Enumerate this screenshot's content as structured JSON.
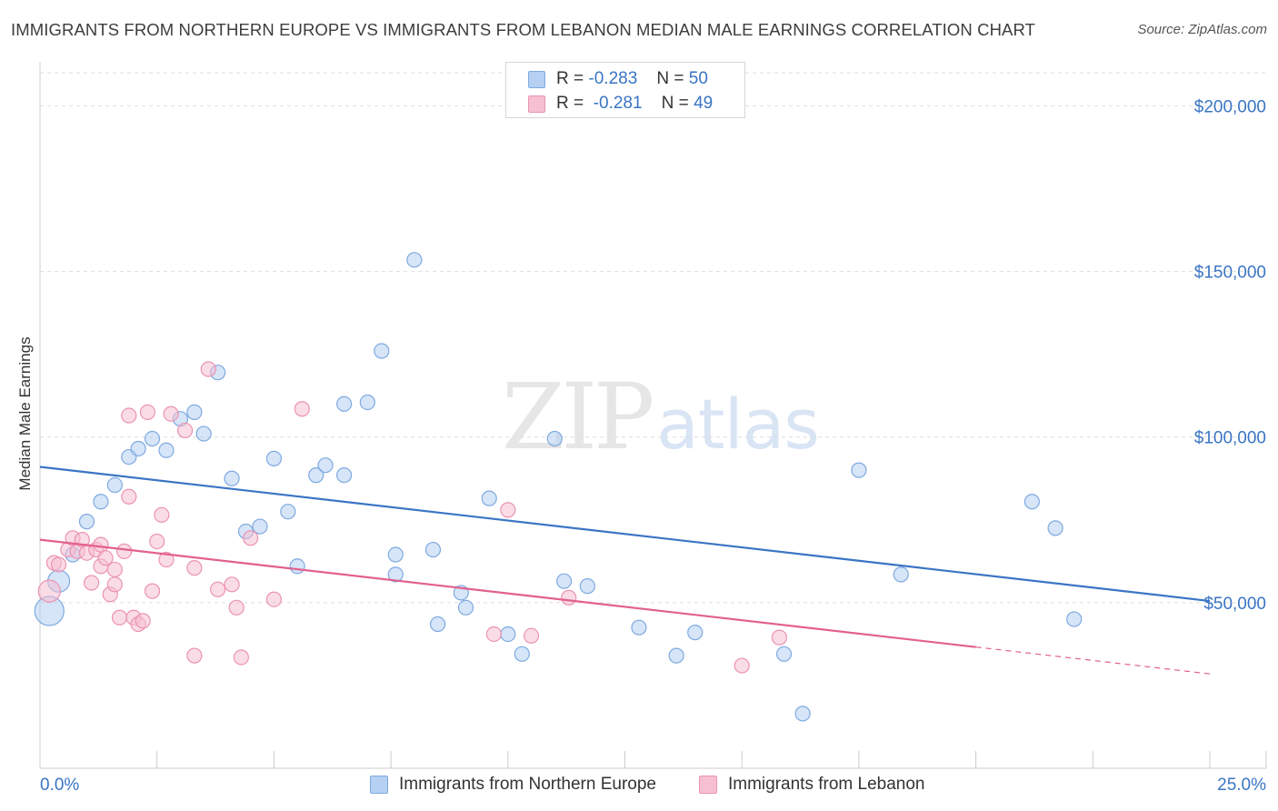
{
  "title": "IMMIGRANTS FROM NORTHERN EUROPE VS IMMIGRANTS FROM LEBANON MEDIAN MALE EARNINGS CORRELATION CHART",
  "source": "Source: ZipAtlas.com",
  "watermark": {
    "zip": "ZIP",
    "atlas": "atlas"
  },
  "colors": {
    "blue": "#3a75c4",
    "blue_fill": "#b5d0f2",
    "blue_stroke": "#7eaae0",
    "pink": "#e2608f",
    "pink_fill": "#f6c0d2",
    "pink_stroke": "#eb93b3",
    "grid": "#dedede",
    "axis": "#cccccc"
  },
  "legend": {
    "rows": [
      {
        "r_label": "R =",
        "r_value": "-0.283",
        "n_label": "N =",
        "n_value": "50"
      },
      {
        "r_label": "R =",
        "r_value": "-0.281",
        "n_label": "N =",
        "n_value": "49"
      }
    ]
  },
  "chart_data": {
    "type": "scatter",
    "title": "IMMIGRANTS FROM NORTHERN EUROPE VS IMMIGRANTS FROM LEBANON MEDIAN MALE EARNINGS CORRELATION CHART",
    "xlabel": "",
    "ylabel": "Median Male Earnings",
    "xlim": [
      0,
      25
    ],
    "ylim": [
      0,
      210000
    ],
    "x_tick_labels": {
      "min": "0.0%",
      "max": "25.0%"
    },
    "y_ticks": [
      {
        "value": 50000,
        "label": "$50,000"
      },
      {
        "value": 100000,
        "label": "$100,000"
      },
      {
        "value": 150000,
        "label": "$150,000"
      },
      {
        "value": 200000,
        "label": "$200,000"
      }
    ],
    "series": [
      {
        "name": "Immigrants from Northern Europe",
        "color": "blue",
        "trend": {
          "x0": 0,
          "y0": 91000,
          "x1": 25,
          "y1": 50500,
          "solid_until": 25
        },
        "points": [
          [
            0.2,
            47500,
            3
          ],
          [
            0.4,
            56500,
            2
          ],
          [
            0.7,
            64500,
            1
          ],
          [
            1.0,
            74500,
            1
          ],
          [
            1.3,
            80500,
            1
          ],
          [
            1.6,
            85500,
            1
          ],
          [
            1.9,
            94000,
            1
          ],
          [
            2.1,
            96500,
            1
          ],
          [
            2.4,
            99500,
            1
          ],
          [
            2.7,
            96000,
            1
          ],
          [
            3.0,
            105500,
            1
          ],
          [
            3.3,
            107500,
            1
          ],
          [
            3.5,
            101000,
            1
          ],
          [
            3.8,
            119500,
            1
          ],
          [
            4.1,
            87500,
            1
          ],
          [
            4.4,
            71500,
            1
          ],
          [
            4.7,
            73000,
            1
          ],
          [
            5.0,
            93500,
            1
          ],
          [
            5.3,
            77500,
            1
          ],
          [
            5.5,
            61000,
            1
          ],
          [
            5.9,
            88500,
            1
          ],
          [
            6.1,
            91500,
            1
          ],
          [
            6.5,
            88500,
            1
          ],
          [
            6.5,
            110000,
            1
          ],
          [
            7.0,
            110500,
            1
          ],
          [
            7.3,
            126000,
            1
          ],
          [
            7.6,
            58500,
            1
          ],
          [
            7.6,
            64500,
            1
          ],
          [
            8.0,
            153500,
            1
          ],
          [
            8.4,
            66000,
            1
          ],
          [
            8.5,
            43500,
            1
          ],
          [
            9.0,
            53000,
            1
          ],
          [
            9.1,
            48500,
            1
          ],
          [
            9.6,
            81500,
            1
          ],
          [
            10.0,
            40500,
            1
          ],
          [
            10.3,
            34500,
            1
          ],
          [
            11.0,
            99500,
            1
          ],
          [
            11.2,
            56500,
            1
          ],
          [
            11.7,
            55000,
            1
          ],
          [
            12.8,
            42500,
            1
          ],
          [
            13.6,
            34000,
            1
          ],
          [
            14.0,
            41000,
            1
          ],
          [
            15.9,
            34500,
            1
          ],
          [
            16.3,
            16500,
            1
          ],
          [
            17.5,
            90000,
            1
          ],
          [
            18.4,
            58500,
            1
          ],
          [
            21.2,
            80500,
            1
          ],
          [
            21.7,
            72500,
            1
          ],
          [
            22.1,
            45000,
            1
          ]
        ]
      },
      {
        "name": "Immigrants from Lebanon",
        "color": "pink",
        "trend": {
          "x0": 0,
          "y0": 69000,
          "x1": 25,
          "y1": 28500,
          "solid_until": 20
        },
        "points": [
          [
            0.2,
            53500,
            2
          ],
          [
            0.3,
            62000,
            1
          ],
          [
            0.4,
            61500,
            1
          ],
          [
            0.6,
            66000,
            1
          ],
          [
            0.7,
            69500,
            1
          ],
          [
            0.8,
            65500,
            1
          ],
          [
            0.9,
            69000,
            1
          ],
          [
            1.0,
            65000,
            1
          ],
          [
            1.1,
            56000,
            1
          ],
          [
            1.2,
            66000,
            1
          ],
          [
            1.3,
            67500,
            1
          ],
          [
            1.3,
            61000,
            1
          ],
          [
            1.4,
            63500,
            1
          ],
          [
            1.5,
            52500,
            1
          ],
          [
            1.6,
            55500,
            1
          ],
          [
            1.6,
            60000,
            1
          ],
          [
            1.7,
            45500,
            1
          ],
          [
            1.8,
            65500,
            1
          ],
          [
            1.9,
            82000,
            1
          ],
          [
            1.9,
            106500,
            1
          ],
          [
            2.0,
            45500,
            1
          ],
          [
            2.1,
            43500,
            1
          ],
          [
            2.2,
            44500,
            1
          ],
          [
            2.3,
            107500,
            1
          ],
          [
            2.4,
            53500,
            1
          ],
          [
            2.5,
            68500,
            1
          ],
          [
            2.6,
            76500,
            1
          ],
          [
            2.7,
            63000,
            1
          ],
          [
            2.8,
            107000,
            1
          ],
          [
            3.1,
            102000,
            1
          ],
          [
            3.3,
            60500,
            1
          ],
          [
            3.3,
            34000,
            1
          ],
          [
            3.6,
            120500,
            1
          ],
          [
            3.8,
            54000,
            1
          ],
          [
            4.1,
            55500,
            1
          ],
          [
            4.2,
            48500,
            1
          ],
          [
            4.3,
            33500,
            1
          ],
          [
            4.5,
            69500,
            1
          ],
          [
            5.0,
            51000,
            1
          ],
          [
            5.6,
            108500,
            1
          ],
          [
            9.7,
            40500,
            1
          ],
          [
            10.0,
            78000,
            1
          ],
          [
            10.5,
            40000,
            1
          ],
          [
            11.3,
            51500,
            1
          ],
          [
            15.0,
            31000,
            1
          ],
          [
            15.8,
            39500,
            1
          ]
        ]
      }
    ]
  },
  "bottom_legend": [
    {
      "label": "Immigrants from Northern Europe"
    },
    {
      "label": "Immigrants from Lebanon"
    }
  ]
}
